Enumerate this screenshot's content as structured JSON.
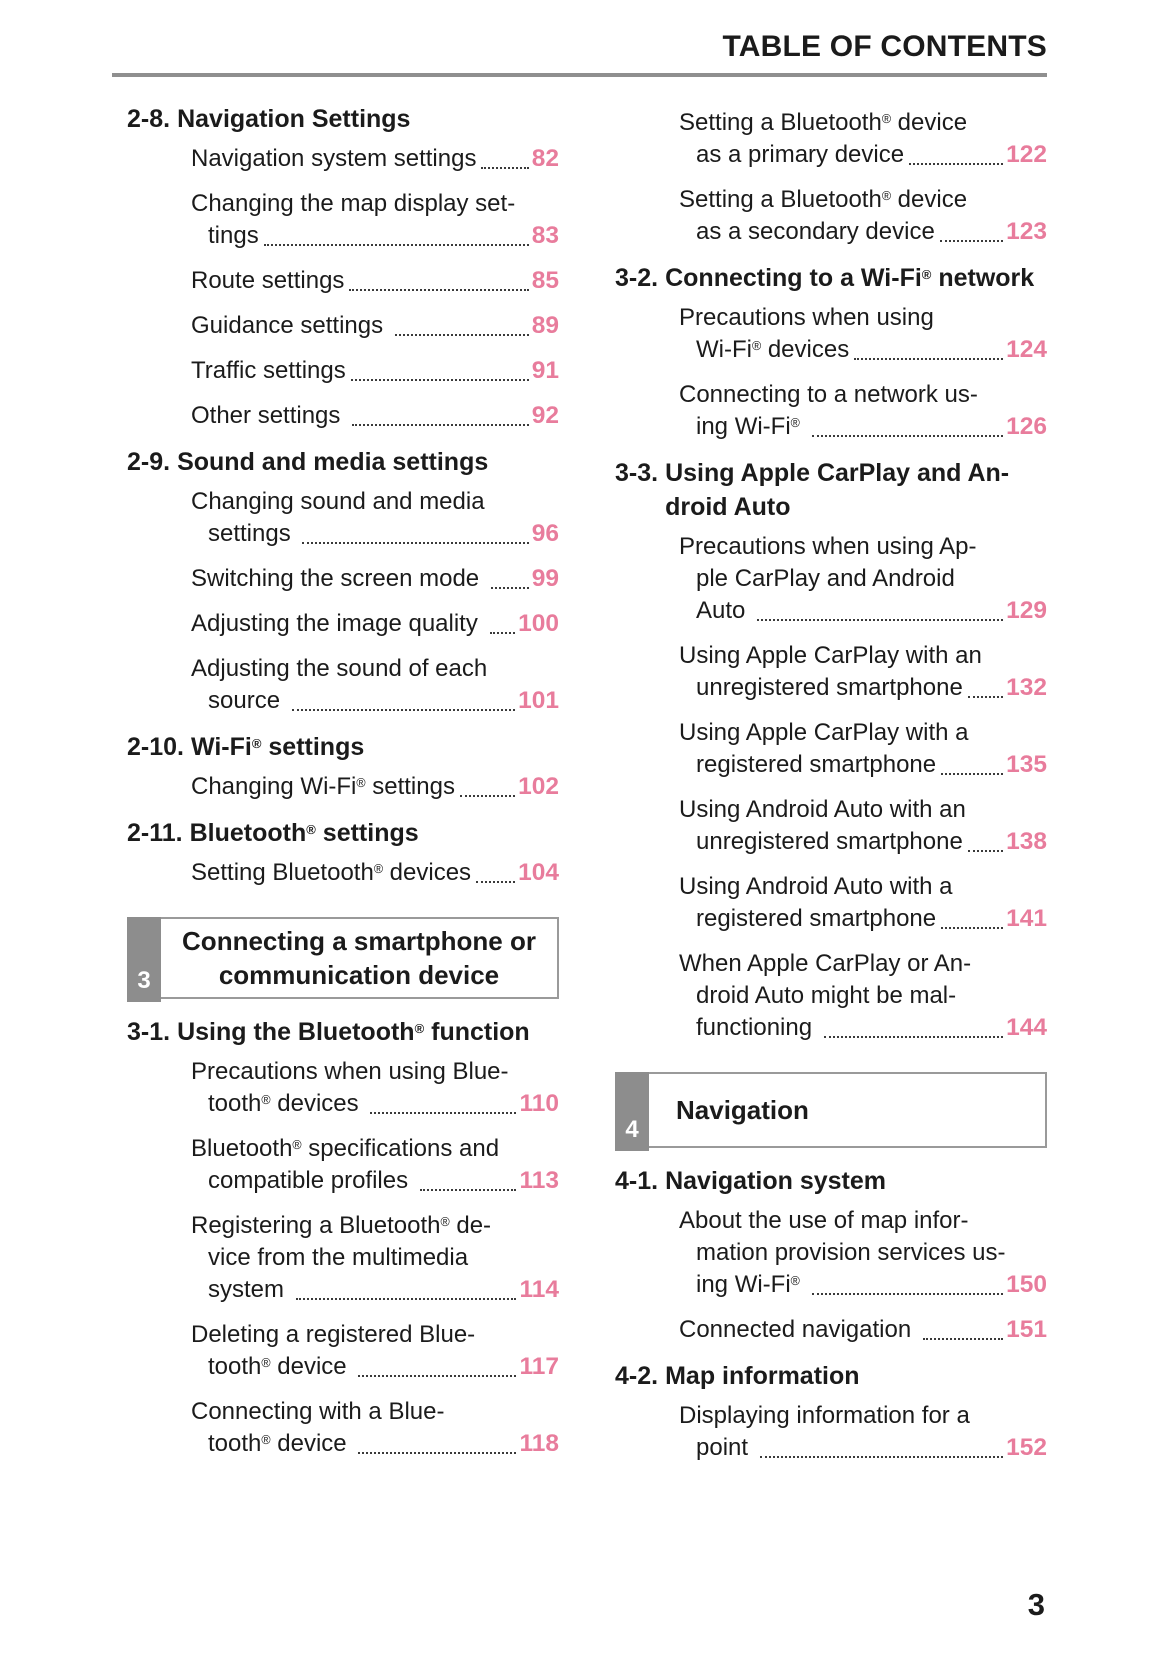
{
  "header": {
    "title": "TABLE OF CONTENTS"
  },
  "footer": {
    "page_number": "3"
  },
  "colors": {
    "accent_pink": "#e87c9c",
    "chapter_tab_gray": "#8d8d8d",
    "box_border_gray": "#9a9a9a",
    "header_rule_gray": "#8f8f8f",
    "text_black": "#1b1b1b"
  },
  "columns": {
    "left": [
      {
        "type": "heading",
        "num": "2-8.",
        "lines": [
          "Navigation Settings"
        ]
      },
      {
        "type": "entry",
        "lines": [
          "Navigation system settings"
        ],
        "page": "82"
      },
      {
        "type": "entry",
        "lines": [
          "Changing the map display set-",
          "tings"
        ],
        "page": "83"
      },
      {
        "type": "entry",
        "lines": [
          "Route settings"
        ],
        "page": "85"
      },
      {
        "type": "entry",
        "lines": [
          "Guidance settings "
        ],
        "page": "89"
      },
      {
        "type": "entry",
        "lines": [
          "Traffic settings"
        ],
        "page": "91"
      },
      {
        "type": "entry",
        "lines": [
          "Other settings "
        ],
        "page": "92"
      },
      {
        "type": "heading",
        "num": "2-9.",
        "lines": [
          "Sound and media settings"
        ]
      },
      {
        "type": "entry",
        "lines": [
          "Changing sound and media",
          "settings "
        ],
        "page": "96"
      },
      {
        "type": "entry",
        "lines": [
          "Switching the screen mode "
        ],
        "page": "99"
      },
      {
        "type": "entry",
        "lines": [
          "Adjusting the image quality "
        ],
        "page": "100"
      },
      {
        "type": "entry",
        "lines": [
          "Adjusting the sound of each",
          "source "
        ],
        "page": "101"
      },
      {
        "type": "heading",
        "num": "2-10.",
        "lines": [
          "Wi-Fi® settings"
        ]
      },
      {
        "type": "entry",
        "lines": [
          "Changing Wi-Fi® settings"
        ],
        "page": "102"
      },
      {
        "type": "heading",
        "num": "2-11.",
        "lines": [
          "Bluetooth® settings"
        ]
      },
      {
        "type": "entry",
        "lines": [
          "Setting Bluetooth® devices"
        ],
        "page": "104"
      },
      {
        "type": "chapter",
        "number": "3",
        "align": "center",
        "lines": [
          "Connecting a smartphone or",
          "communication device"
        ]
      },
      {
        "type": "heading",
        "num": "3-1.",
        "lines": [
          "Using the Bluetooth® function"
        ]
      },
      {
        "type": "entry",
        "lines": [
          "Precautions when using Blue-",
          "tooth® devices "
        ],
        "page": "110"
      },
      {
        "type": "entry",
        "lines": [
          "Bluetooth® specifications and",
          "compatible profiles "
        ],
        "page": "113"
      },
      {
        "type": "entry",
        "lines": [
          "Registering a Bluetooth® de-",
          "vice from the multimedia",
          "system "
        ],
        "page": "114"
      },
      {
        "type": "entry",
        "lines": [
          "Deleting a registered Blue-",
          "tooth® device "
        ],
        "page": "117"
      },
      {
        "type": "entry",
        "lines": [
          "Connecting with a Blue-",
          "tooth® device "
        ],
        "page": "118"
      }
    ],
    "right": [
      {
        "type": "entry",
        "lines": [
          "Setting a Bluetooth® device",
          "as a primary device"
        ],
        "page": "122"
      },
      {
        "type": "entry",
        "lines": [
          "Setting a Bluetooth® device",
          "as a secondary device"
        ],
        "page": "123"
      },
      {
        "type": "heading",
        "num": "3-2.",
        "lines": [
          "Connecting to a Wi-Fi® network"
        ]
      },
      {
        "type": "entry",
        "lines": [
          "Precautions when using",
          "Wi-Fi® devices"
        ],
        "page": "124"
      },
      {
        "type": "entry",
        "lines": [
          "Connecting to a network us-",
          "ing Wi-Fi® "
        ],
        "page": "126"
      },
      {
        "type": "heading",
        "num": "3-3.",
        "lines": [
          "Using Apple CarPlay and An-",
          "droid Auto"
        ]
      },
      {
        "type": "entry",
        "lines": [
          "Precautions when using Ap-",
          "ple CarPlay and Android",
          "Auto "
        ],
        "page": "129"
      },
      {
        "type": "entry",
        "lines": [
          "Using Apple CarPlay with an",
          "unregistered smartphone"
        ],
        "page": "132"
      },
      {
        "type": "entry",
        "lines": [
          "Using Apple CarPlay with a",
          "registered smartphone"
        ],
        "page": "135"
      },
      {
        "type": "entry",
        "lines": [
          "Using Android Auto with an",
          "unregistered smartphone"
        ],
        "page": "138"
      },
      {
        "type": "entry",
        "lines": [
          "Using Android Auto with a",
          "registered smartphone"
        ],
        "page": "141"
      },
      {
        "type": "entry",
        "lines": [
          "When Apple CarPlay or An-",
          "droid Auto might be mal-",
          "functioning "
        ],
        "page": "144"
      },
      {
        "type": "chapter",
        "number": "4",
        "align": "left",
        "lines": [
          "Navigation"
        ]
      },
      {
        "type": "heading",
        "num": "4-1.",
        "lines": [
          "Navigation system"
        ]
      },
      {
        "type": "entry",
        "lines": [
          "About the use of map infor-",
          "mation provision services us-",
          "ing Wi-Fi® "
        ],
        "page": "150"
      },
      {
        "type": "entry",
        "lines": [
          "Connected navigation "
        ],
        "page": "151"
      },
      {
        "type": "heading",
        "num": "4-2.",
        "lines": [
          "Map information"
        ]
      },
      {
        "type": "entry",
        "lines": [
          "Displaying information for a",
          "point "
        ],
        "page": "152"
      }
    ]
  }
}
